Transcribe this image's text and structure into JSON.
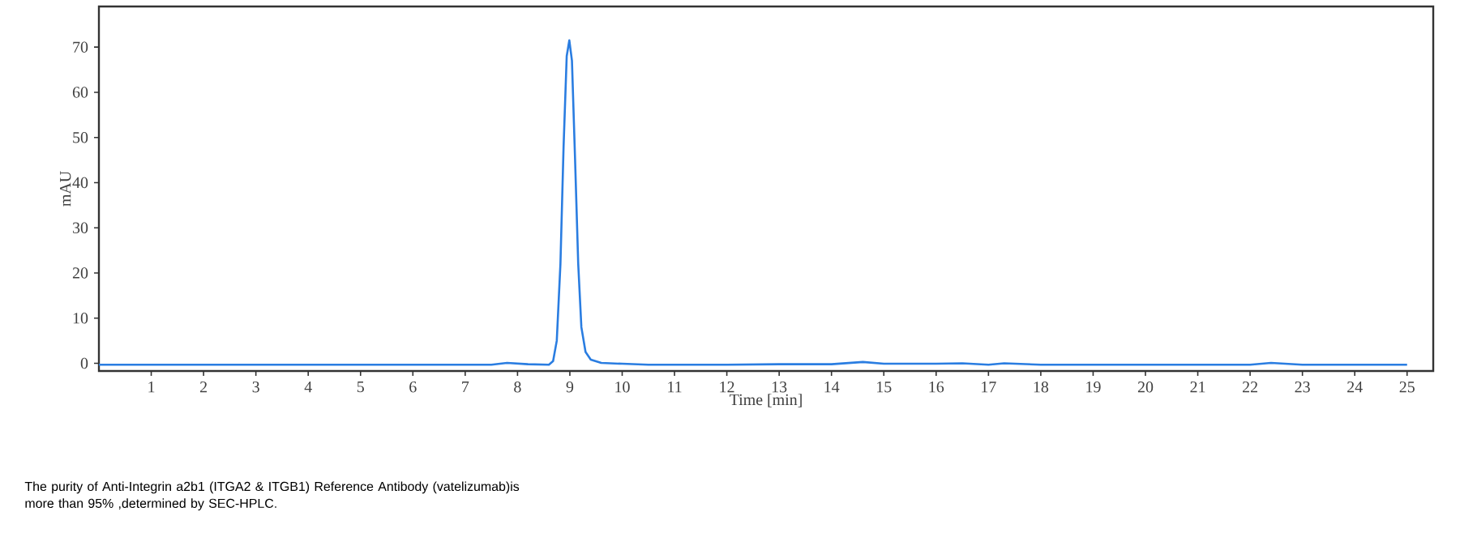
{
  "chart_data": {
    "type": "line",
    "xlabel": "Time [min]",
    "ylabel": "mAU",
    "x": [
      0,
      2,
      4,
      6,
      7.5,
      7.8,
      8.2,
      8.6,
      8.68,
      8.75,
      8.82,
      8.88,
      8.94,
      8.99,
      9.04,
      9.1,
      9.16,
      9.22,
      9.3,
      9.4,
      9.6,
      10.0,
      10.5,
      12,
      13,
      14,
      14.6,
      15,
      16,
      16.5,
      17,
      17.3,
      18,
      20,
      22,
      22.4,
      23,
      25
    ],
    "series": [
      {
        "color": "#2a7de1",
        "values": [
          -0.3,
          -0.3,
          -0.3,
          -0.3,
          -0.3,
          0.1,
          -0.2,
          -0.3,
          0.5,
          5,
          22,
          48,
          68,
          71.5,
          67,
          45,
          22,
          8,
          2.5,
          0.8,
          0.1,
          -0.1,
          -0.3,
          -0.3,
          -0.2,
          -0.2,
          0.3,
          -0.1,
          -0.1,
          0,
          -0.3,
          0,
          -0.3,
          -0.3,
          -0.3,
          0.1,
          -0.3,
          -0.3
        ]
      }
    ],
    "xlim": [
      0,
      25.5
    ],
    "ylim": [
      -1.7,
      79
    ],
    "xticks": [
      1,
      2,
      3,
      4,
      5,
      6,
      7,
      8,
      9,
      10,
      11,
      12,
      13,
      14,
      15,
      16,
      17,
      18,
      19,
      20,
      21,
      22,
      23,
      24,
      25
    ],
    "yticks": [
      0,
      10,
      20,
      30,
      40,
      50,
      60,
      70
    ],
    "marker": "none",
    "line_style": "solid",
    "annotations": [
      "The purity of Anti-Integrin a2b1 (ITGA2 & ITGB1) Reference Antibody (vatelizumab)is more than 95% ,determined by SEC-HPLC."
    ]
  }
}
